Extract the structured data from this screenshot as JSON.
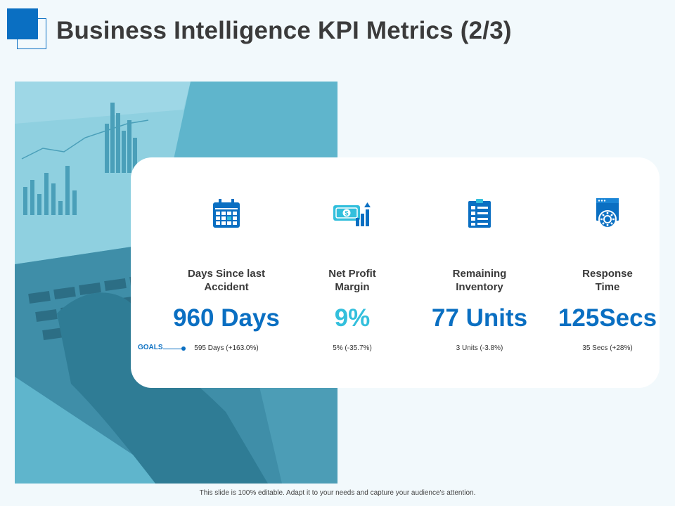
{
  "header": {
    "title": "Business Intelligence KPI Metrics (2/3)"
  },
  "colors": {
    "accent_blue": "#0a6fc2",
    "accent_teal": "#33bfdc",
    "photo_tint": "#5fb5cc",
    "background": "#f2f9fc"
  },
  "goals_label": "GOALS",
  "kpis": [
    {
      "label_line1": "Days Since last",
      "label_line2": "Accident",
      "value": "960 Days",
      "goal": "595 Days (+163.0%)",
      "icon": "calendar-icon"
    },
    {
      "label_line1": "Net Profit",
      "label_line2": "Margin",
      "value": "9%",
      "goal": "5% (-35.7%)",
      "icon": "money-growth-icon"
    },
    {
      "label_line1": "Remaining",
      "label_line2": "Inventory",
      "value": "77 Units",
      "goal": "3 Units (-3.8%)",
      "icon": "checklist-icon"
    },
    {
      "label_line1": "Response",
      "label_line2": "Time",
      "value": "125Secs",
      "goal": "35 Secs (+28%)",
      "icon": "settings-window-icon"
    }
  ],
  "footer": {
    "text": "This slide is 100% editable. Adapt it to your needs and capture your audience's attention."
  }
}
